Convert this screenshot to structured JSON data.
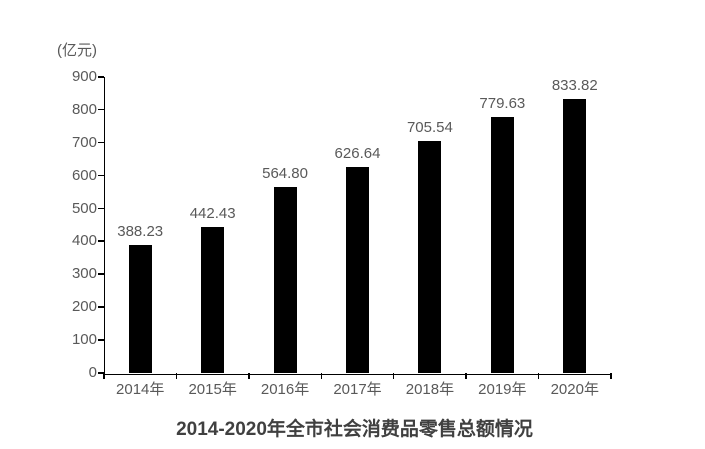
{
  "chart_data": {
    "type": "bar",
    "title": "2014-2020年全市社会消费品零售总额情况",
    "unit_label": "(亿元)",
    "categories": [
      "2014年",
      "2015年",
      "2016年",
      "2017年",
      "2018年",
      "2019年",
      "2020年"
    ],
    "values": [
      388.23,
      442.43,
      564.8,
      626.64,
      705.54,
      779.63,
      833.82
    ],
    "value_labels": [
      "388.23",
      "442.43",
      "564.80",
      "626.64",
      "705.54",
      "779.63",
      "833.82"
    ],
    "ylabel": "",
    "xlabel": "",
    "ylim": [
      0,
      900
    ],
    "ytick_step": 100,
    "grid": false,
    "legend": "none",
    "bar_color": "#000000",
    "axis_color": "#000000",
    "label_color": "#595959",
    "title_color": "#404040"
  }
}
